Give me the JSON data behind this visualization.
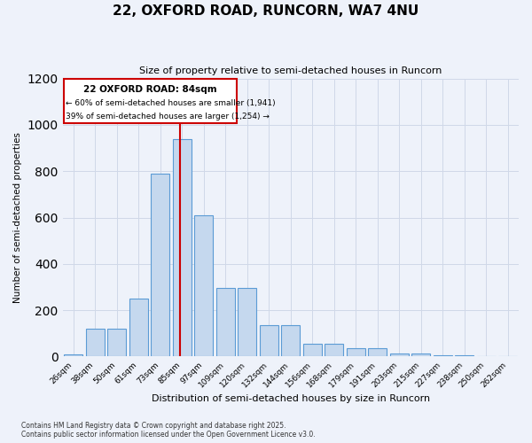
{
  "title": "22, OXFORD ROAD, RUNCORN, WA7 4NU",
  "subtitle": "Size of property relative to semi-detached houses in Runcorn",
  "xlabel": "Distribution of semi-detached houses by size in Runcorn",
  "ylabel": "Number of semi-detached properties",
  "property_label": "22 OXFORD ROAD: 84sqm",
  "smaller_pct": 60,
  "smaller_count": 1941,
  "larger_pct": 39,
  "larger_count": 1254,
  "bar_color": "#c5d8ee",
  "bar_edge_color": "#5b9bd5",
  "vline_color": "#cc0000",
  "annotation_box_color": "#cc0000",
  "grid_color": "#d0d8e8",
  "bg_color": "#eef2fa",
  "categories": [
    "26sqm",
    "38sqm",
    "50sqm",
    "61sqm",
    "73sqm",
    "85sqm",
    "97sqm",
    "109sqm",
    "120sqm",
    "132sqm",
    "144sqm",
    "156sqm",
    "168sqm",
    "179sqm",
    "191sqm",
    "203sqm",
    "215sqm",
    "227sqm",
    "238sqm",
    "250sqm",
    "262sqm"
  ],
  "values": [
    10,
    120,
    120,
    250,
    790,
    940,
    610,
    295,
    295,
    135,
    135,
    55,
    55,
    35,
    35,
    15,
    15,
    7,
    7,
    2,
    2
  ],
  "ylim": [
    0,
    1200
  ],
  "yticks": [
    0,
    200,
    400,
    600,
    800,
    1000,
    1200
  ],
  "vline_idx": 5,
  "footnote1": "Contains HM Land Registry data © Crown copyright and database right 2025.",
  "footnote2": "Contains public sector information licensed under the Open Government Licence v3.0."
}
